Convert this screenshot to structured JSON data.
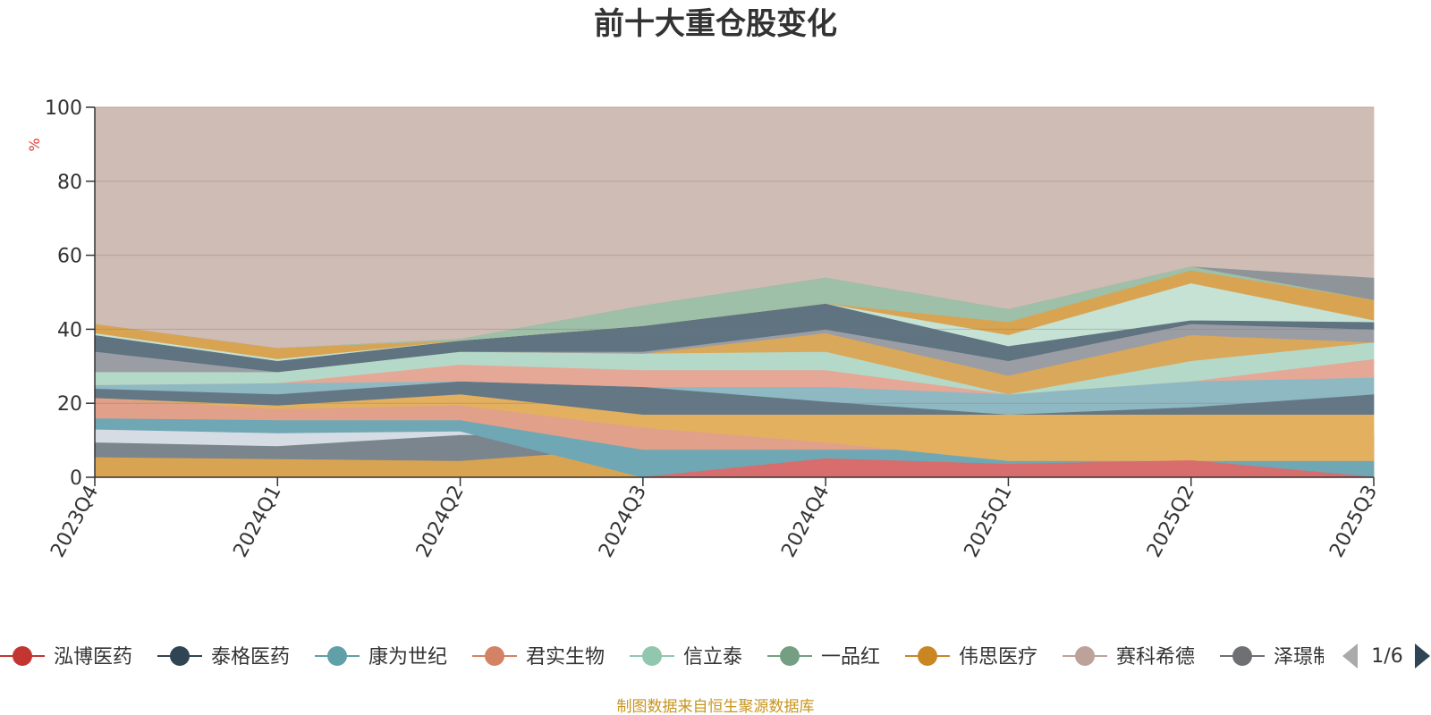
{
  "chart_data": {
    "type": "area",
    "title": "前十大重仓股变化",
    "ylabel": "%",
    "ylim": [
      0,
      100
    ],
    "yticks": [
      0,
      20,
      40,
      60,
      80,
      100
    ],
    "categories": [
      "2023Q4",
      "2024Q1",
      "2024Q2",
      "2024Q3",
      "2024Q4",
      "2025Q1",
      "2025Q2",
      "2025Q3"
    ],
    "series": [
      {
        "name": "伟思医疗",
        "color": "#d9a452",
        "bottom": [
          0,
          0,
          0,
          0,
          0,
          0,
          0,
          0
        ],
        "top": [
          5.5,
          5.0,
          4.5,
          8,
          8,
          8,
          8,
          8
        ]
      },
      {
        "name": "泽璟制药",
        "color": "#7a858e",
        "bottom": [
          5.5,
          5.0,
          4.5,
          8,
          8,
          8,
          8,
          8
        ],
        "top": [
          9.5,
          8.5,
          11.5,
          11.5,
          11.5,
          11.5,
          11.5,
          11.5
        ]
      },
      {
        "name": "信立泰",
        "color": "#d6dce3",
        "bottom": [
          9.5,
          8.5,
          11.5,
          11.5,
          11.5,
          11.5,
          11.5,
          11.5
        ],
        "top": [
          13,
          12,
          12.5,
          12.5,
          12.5,
          12.5,
          12.5,
          12.5
        ]
      },
      {
        "name": "康为世纪",
        "color": "#6fa7b4",
        "bottom": [
          13,
          12,
          12.5,
          0,
          0,
          0,
          0,
          0
        ],
        "top": [
          16,
          15.5,
          15.5,
          7.5,
          7.5,
          7.5,
          7.5,
          7.5
        ]
      },
      {
        "name": "君实生物",
        "color": "#e0a08a",
        "bottom": [
          16,
          15.5,
          15.5,
          7.5,
          7.5,
          7.5,
          7.5,
          7.5
        ],
        "top": [
          21.5,
          18.5,
          19.5,
          13.5,
          9.5,
          4.5,
          4.5,
          4.5
        ]
      },
      {
        "name": "伟思医疗",
        "color": "#e3b060",
        "bottom": [
          21.5,
          18.5,
          19.5,
          13.5,
          9.5,
          4.5,
          4.5,
          4.5
        ],
        "top": [
          21.5,
          19.5,
          22.5,
          17,
          17,
          17,
          17,
          17
        ]
      },
      {
        "name": "泰格医药",
        "color": "#647785",
        "bottom": [
          21.5,
          19.5,
          22.5,
          17,
          17,
          17,
          17,
          17
        ],
        "top": [
          24,
          22.5,
          26,
          24.5,
          20.5,
          17,
          19,
          22.5
        ]
      },
      {
        "name": "康为世纪",
        "color": "#8fb9c2",
        "bottom": [
          24,
          22.5,
          26,
          24.5,
          20.5,
          17,
          19,
          22.5
        ],
        "top": [
          25,
          25.5,
          26,
          24.5,
          24.5,
          22.5,
          26,
          27
        ]
      },
      {
        "name": "君实生物",
        "color": "#e5a896",
        "bottom": [
          25,
          25.5,
          26,
          24.5,
          24.5,
          22.5,
          26,
          27
        ],
        "top": [
          25,
          25.5,
          30.5,
          29,
          29,
          22.5,
          26,
          32
        ]
      },
      {
        "name": "信立泰",
        "color": "#b4d9c9",
        "bottom": [
          25,
          25.5,
          30.5,
          29,
          29,
          22.5,
          26,
          32
        ],
        "top": [
          28.5,
          28.5,
          34,
          33.5,
          34,
          22.5,
          31.5,
          36.5
        ]
      },
      {
        "name": "伟思医疗",
        "color": "#daa85a",
        "bottom": [
          28.5,
          28.5,
          34,
          33.5,
          34,
          22.5,
          31.5,
          36.5
        ],
        "top": [
          28.5,
          28.5,
          34,
          33.5,
          39,
          27.5,
          38.5,
          36.5
        ]
      },
      {
        "name": "泽璟制药",
        "color": "#9a9ea4",
        "bottom": [
          28.5,
          28.5,
          34,
          33.5,
          39,
          27.5,
          38.5,
          36.5
        ],
        "top": [
          34,
          28.5,
          34,
          34,
          40,
          31.5,
          41.5,
          40
        ]
      },
      {
        "name": "泰格医药",
        "color": "#5f7381",
        "bottom": [
          34,
          28.5,
          34,
          34,
          40,
          31.5,
          41.5,
          40
        ],
        "top": [
          38.5,
          31.5,
          37,
          41,
          47,
          35.5,
          42.5,
          42
        ]
      },
      {
        "name": "信立泰",
        "color": "#c5e2d4",
        "bottom": [
          38.5,
          31.5,
          37,
          41,
          47,
          35.5,
          42.5,
          42
        ],
        "top": [
          39,
          32,
          37,
          41,
          47,
          38.5,
          52.5,
          42.5
        ]
      },
      {
        "name": "伟思医疗",
        "color": "#d9a452",
        "bottom": [
          39,
          32,
          37,
          41,
          47,
          38.5,
          52.5,
          42.5
        ],
        "top": [
          41.5,
          35,
          37,
          41,
          47,
          42,
          56,
          48
        ]
      },
      {
        "name": "一品红",
        "color": "#9ebfa8",
        "bottom": [
          41.5,
          35,
          37,
          41,
          47,
          42,
          56,
          48
        ],
        "top": [
          41.5,
          35,
          37.5,
          46.5,
          54,
          45.5,
          57,
          54
        ]
      },
      {
        "name": "泽璟制药",
        "color": "#8f9499",
        "bottom": [
          41.5,
          35,
          37.5,
          46.5,
          54,
          45.5,
          57,
          48
        ],
        "top": [
          41.5,
          35,
          37.5,
          46.5,
          54,
          45.5,
          57,
          54
        ]
      },
      {
        "name": "赛科希德",
        "color": "#cebcb5",
        "bottom": [
          41.5,
          35,
          37.5,
          46.5,
          54,
          45.5,
          57,
          54
        ],
        "top": [
          100,
          100,
          100,
          100,
          100,
          100,
          100,
          100
        ]
      },
      {
        "name": "泓博医药",
        "color": "#d86d6d",
        "bottom": [
          0,
          0,
          0,
          0,
          0,
          0,
          0,
          0
        ],
        "top": [
          0,
          0,
          0,
          0,
          5,
          3.5,
          4.5,
          0
        ]
      }
    ]
  },
  "legend": {
    "items": [
      {
        "name": "泓博医药",
        "color": "#c23531"
      },
      {
        "name": "泰格医药",
        "color": "#2f4554"
      },
      {
        "name": "康为世纪",
        "color": "#61a0a8"
      },
      {
        "name": "君实生物",
        "color": "#d48265"
      },
      {
        "name": "信立泰",
        "color": "#91c7ae"
      },
      {
        "name": "一品红",
        "color": "#749f83"
      },
      {
        "name": "伟思医疗",
        "color": "#ca8622"
      },
      {
        "name": "赛科希德",
        "color": "#bda29a"
      },
      {
        "name": "泽璟制药",
        "color": "#6e7074"
      }
    ],
    "page": "1/6"
  },
  "source_note": "制图数据来自恒生聚源数据库"
}
